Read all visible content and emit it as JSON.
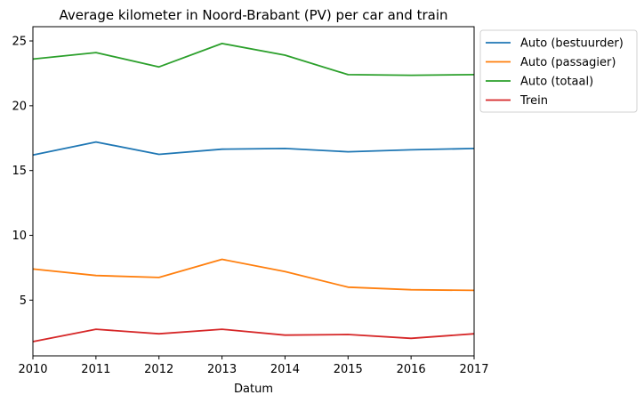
{
  "chart_data": {
    "type": "line",
    "title": "Average kilometer in Noord-Brabant (PV) per car and train",
    "xlabel": "Datum",
    "ylabel": "",
    "x": [
      2010,
      2011,
      2012,
      2013,
      2014,
      2015,
      2016,
      2017
    ],
    "xlim": [
      2010,
      2017
    ],
    "ylim": [
      0.7,
      26.1
    ],
    "yticks": [
      5,
      10,
      15,
      20,
      25
    ],
    "grid": false,
    "legend_position": "outside-top-right",
    "series": [
      {
        "name": "Auto (bestuurder)",
        "color": "#1f77b4",
        "values": [
          16.2,
          17.2,
          16.25,
          16.65,
          16.7,
          16.45,
          16.6,
          16.7
        ]
      },
      {
        "name": "Auto (passagier)",
        "color": "#ff7f0e",
        "values": [
          7.4,
          6.9,
          6.75,
          8.15,
          7.2,
          6.0,
          5.8,
          5.75
        ]
      },
      {
        "name": "Auto (totaal)",
        "color": "#2ca02c",
        "values": [
          23.6,
          24.1,
          23.0,
          24.8,
          23.9,
          22.4,
          22.35,
          22.4
        ]
      },
      {
        "name": "Trein",
        "color": "#d62728",
        "values": [
          1.8,
          2.75,
          2.4,
          2.75,
          2.3,
          2.35,
          2.05,
          2.4
        ]
      }
    ]
  }
}
